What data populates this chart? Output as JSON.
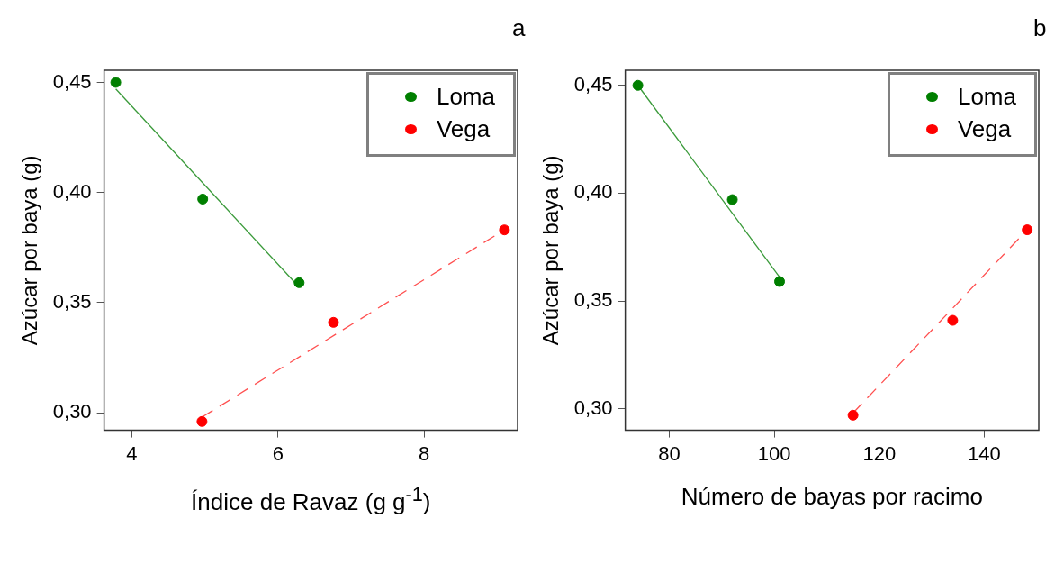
{
  "chart_data": [
    {
      "type": "scatter",
      "ylabel": "Azúcar por baya (g)",
      "xlabel": "Índice de Ravaz (g g$^{-1}$)",
      "annotations": [
        "a"
      ],
      "xlim": [
        3.62,
        9.28
      ],
      "xticks": [
        4,
        6,
        8
      ],
      "ylim": [
        0.292,
        0.4555
      ],
      "yticks": [
        {
          "value": 0.3,
          "label": "0,30"
        },
        {
          "value": 0.35,
          "label": "0,35"
        },
        {
          "value": 0.4,
          "label": "0,40"
        },
        {
          "value": 0.45,
          "label": "0,45"
        }
      ],
      "grid": false,
      "legend": "top right",
      "series": [
        {
          "name": "Loma",
          "marker": "circle",
          "color": "#007f00",
          "x": [
            3.78,
            4.97,
            6.29
          ],
          "values": [
            0.45,
            0.397,
            0.359
          ]
        },
        {
          "name": "Vega",
          "marker": "circle",
          "color": "#ff0000",
          "x": [
            4.96,
            6.76,
            9.1
          ],
          "values": [
            0.296,
            0.341,
            0.383
          ]
        },
        {
          "type": "line",
          "marker": "none",
          "line_style": "solid",
          "color": "#3a9a3a",
          "x": [
            3.78,
            6.29
          ],
          "values": [
            0.447,
            0.357
          ]
        },
        {
          "type": "line",
          "marker": "none",
          "line_style": "dashed",
          "color": "#ff5050",
          "x": [
            4.96,
            9.1
          ],
          "values": [
            0.298,
            0.383
          ]
        }
      ]
    },
    {
      "type": "scatter",
      "ylabel": "Azúcar por baya (g)",
      "xlabel": "Número de bayas por racimo",
      "annotations": [
        "b"
      ],
      "xlim": [
        71.6,
        150.4
      ],
      "xticks": [
        80,
        100,
        120,
        140
      ],
      "ylim": [
        0.29,
        0.457
      ],
      "yticks": [
        {
          "value": 0.3,
          "label": "0,30"
        },
        {
          "value": 0.35,
          "label": "0,35"
        },
        {
          "value": 0.4,
          "label": "0,40"
        },
        {
          "value": 0.45,
          "label": "0,45"
        }
      ],
      "grid": false,
      "legend": "top right",
      "series": [
        {
          "name": "Loma",
          "marker": "circle",
          "color": "#007f00",
          "x": [
            74,
            92,
            101
          ],
          "values": [
            0.45,
            0.397,
            0.359
          ]
        },
        {
          "name": "Vega",
          "marker": "circle",
          "color": "#ff0000",
          "x": [
            115,
            134,
            148.2
          ],
          "values": [
            0.297,
            0.341,
            0.383
          ]
        },
        {
          "type": "line",
          "marker": "none",
          "line_style": "solid",
          "color": "#3a9a3a",
          "x": [
            74,
            101
          ],
          "values": [
            0.45,
            0.361
          ]
        },
        {
          "type": "line",
          "marker": "none",
          "line_style": "dashed",
          "color": "#ff5050",
          "x": [
            115,
            148.2
          ],
          "values": [
            0.298,
            0.383
          ]
        }
      ]
    }
  ]
}
